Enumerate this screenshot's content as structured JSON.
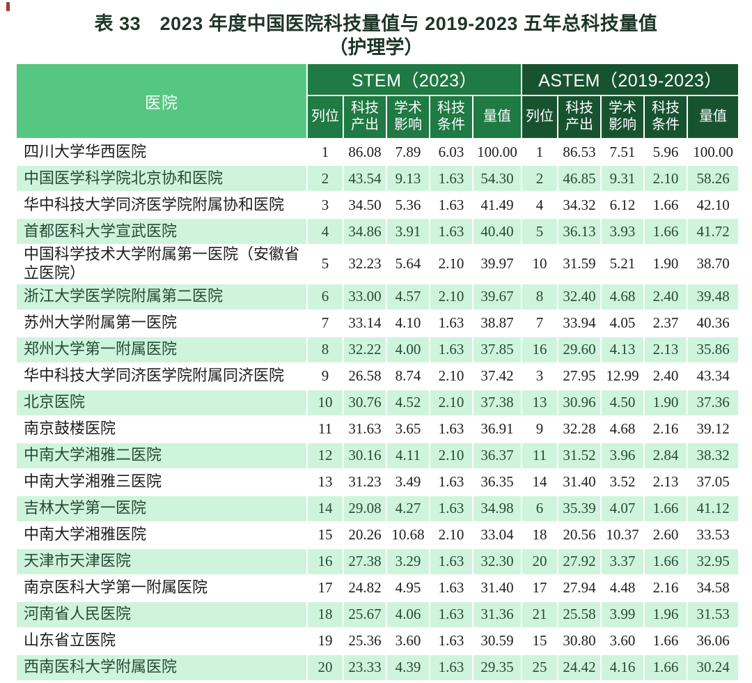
{
  "page": {
    "title_line1": "表 33　2023 年度中国医院科技量值与 2019-2023 五年总科技量值",
    "title_line2": "（护理学）"
  },
  "table": {
    "hospital_header": "医院",
    "group_headers": [
      {
        "label": "STEM（2023）"
      },
      {
        "label": "ASTEM（2019-2023）"
      }
    ],
    "sub_headers": [
      "列位",
      "科技\n产出",
      "学术\n影响",
      "科技\n条件",
      "量值"
    ],
    "colors": {
      "title_text": "#1e3527",
      "hospital_header_bg": "#55c783",
      "stem_header_bg": "#1f7a43",
      "astem_header_bg": "#185330",
      "row_alt_bg": "#cff4dc"
    },
    "rows": [
      {
        "hospital": "四川大学华西医院",
        "stem": [
          "1",
          "86.08",
          "7.89",
          "6.03",
          "100.00"
        ],
        "astem": [
          "1",
          "86.53",
          "7.51",
          "5.96",
          "100.00"
        ]
      },
      {
        "hospital": "中国医学科学院北京协和医院",
        "stem": [
          "2",
          "43.54",
          "9.13",
          "1.63",
          "54.30"
        ],
        "astem": [
          "2",
          "46.85",
          "9.31",
          "2.10",
          "58.26"
        ]
      },
      {
        "hospital": "华中科技大学同济医学院附属协和医院",
        "stem": [
          "3",
          "34.50",
          "5.36",
          "1.63",
          "41.49"
        ],
        "astem": [
          "4",
          "34.32",
          "6.12",
          "1.66",
          "42.10"
        ]
      },
      {
        "hospital": "首都医科大学宣武医院",
        "stem": [
          "4",
          "34.86",
          "3.91",
          "1.63",
          "40.40"
        ],
        "astem": [
          "5",
          "36.13",
          "3.93",
          "1.66",
          "41.72"
        ]
      },
      {
        "hospital": "中国科学技术大学附属第一医院（安徽省立医院）",
        "stem": [
          "5",
          "32.23",
          "5.64",
          "2.10",
          "39.97"
        ],
        "astem": [
          "10",
          "31.59",
          "5.21",
          "1.90",
          "38.70"
        ]
      },
      {
        "hospital": "浙江大学医学院附属第二医院",
        "stem": [
          "6",
          "33.00",
          "4.57",
          "2.10",
          "39.67"
        ],
        "astem": [
          "8",
          "32.40",
          "4.68",
          "2.40",
          "39.48"
        ]
      },
      {
        "hospital": "苏州大学附属第一医院",
        "stem": [
          "7",
          "33.14",
          "4.10",
          "1.63",
          "38.87"
        ],
        "astem": [
          "7",
          "33.94",
          "4.05",
          "2.37",
          "40.36"
        ]
      },
      {
        "hospital": "郑州大学第一附属医院",
        "stem": [
          "8",
          "32.22",
          "4.00",
          "1.63",
          "37.85"
        ],
        "astem": [
          "16",
          "29.60",
          "4.13",
          "2.13",
          "35.86"
        ]
      },
      {
        "hospital": "华中科技大学同济医学院附属同济医院",
        "stem": [
          "9",
          "26.58",
          "8.74",
          "2.10",
          "37.42"
        ],
        "astem": [
          "3",
          "27.95",
          "12.99",
          "2.40",
          "43.34"
        ]
      },
      {
        "hospital": "北京医院",
        "stem": [
          "10",
          "30.76",
          "4.52",
          "2.10",
          "37.38"
        ],
        "astem": [
          "13",
          "30.96",
          "4.50",
          "1.90",
          "37.36"
        ]
      },
      {
        "hospital": "南京鼓楼医院",
        "stem": [
          "11",
          "31.63",
          "3.65",
          "1.63",
          "36.91"
        ],
        "astem": [
          "9",
          "32.28",
          "4.68",
          "2.16",
          "39.12"
        ]
      },
      {
        "hospital": "中南大学湘雅二医院",
        "stem": [
          "12",
          "30.16",
          "4.11",
          "2.10",
          "36.37"
        ],
        "astem": [
          "11",
          "31.52",
          "3.96",
          "2.84",
          "38.32"
        ]
      },
      {
        "hospital": "中南大学湘雅三医院",
        "stem": [
          "13",
          "31.23",
          "3.49",
          "1.63",
          "36.35"
        ],
        "astem": [
          "14",
          "31.40",
          "3.52",
          "2.13",
          "37.05"
        ]
      },
      {
        "hospital": "吉林大学第一医院",
        "stem": [
          "14",
          "29.08",
          "4.27",
          "1.63",
          "34.98"
        ],
        "astem": [
          "6",
          "35.39",
          "4.07",
          "1.66",
          "41.12"
        ]
      },
      {
        "hospital": "中南大学湘雅医院",
        "stem": [
          "15",
          "20.26",
          "10.68",
          "2.10",
          "33.04"
        ],
        "astem": [
          "18",
          "20.56",
          "10.37",
          "2.60",
          "33.53"
        ]
      },
      {
        "hospital": "天津市天津医院",
        "stem": [
          "16",
          "27.38",
          "3.29",
          "1.63",
          "32.30"
        ],
        "astem": [
          "20",
          "27.92",
          "3.37",
          "1.66",
          "32.95"
        ]
      },
      {
        "hospital": "南京医科大学第一附属医院",
        "stem": [
          "17",
          "24.82",
          "4.95",
          "1.63",
          "31.40"
        ],
        "astem": [
          "17",
          "27.94",
          "4.48",
          "2.16",
          "34.58"
        ]
      },
      {
        "hospital": "河南省人民医院",
        "stem": [
          "18",
          "25.67",
          "4.06",
          "1.63",
          "31.36"
        ],
        "astem": [
          "21",
          "25.58",
          "3.99",
          "1.96",
          "31.53"
        ]
      },
      {
        "hospital": "山东省立医院",
        "stem": [
          "19",
          "25.36",
          "3.60",
          "1.63",
          "30.59"
        ],
        "astem": [
          "15",
          "30.80",
          "3.60",
          "1.66",
          "36.06"
        ]
      },
      {
        "hospital": "西南医科大学附属医院",
        "stem": [
          "20",
          "23.33",
          "4.39",
          "1.63",
          "29.35"
        ],
        "astem": [
          "25",
          "24.42",
          "4.16",
          "1.66",
          "30.24"
        ]
      }
    ]
  }
}
